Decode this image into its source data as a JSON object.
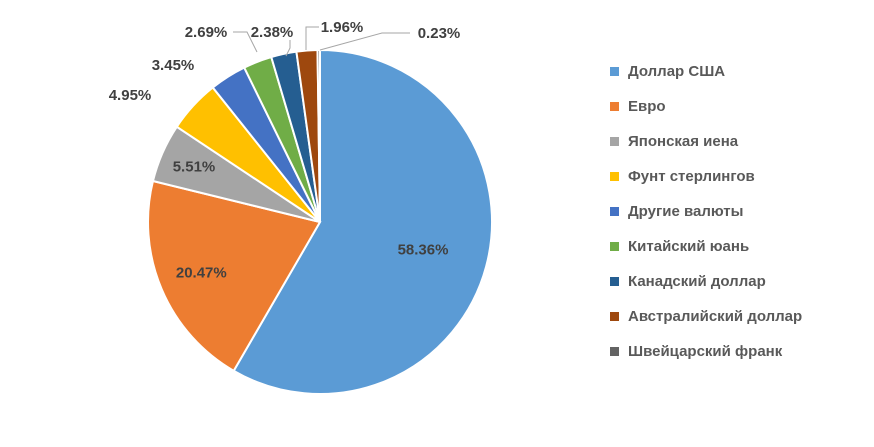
{
  "chart_data": {
    "type": "pie",
    "title": "",
    "legend_position": "right",
    "start_angle_deg": 0,
    "direction": "clockwise",
    "slices": [
      {
        "name": "Доллар США",
        "value": 58.36,
        "label": "58.36%",
        "color": "#5B9BD5",
        "label_style": "inside"
      },
      {
        "name": "Евро",
        "value": 20.47,
        "label": "20.47%",
        "color": "#ED7D31",
        "label_style": "inside"
      },
      {
        "name": "Японская иена",
        "value": 5.51,
        "label": "5.51%",
        "color": "#A5A5A5",
        "label_style": "inside"
      },
      {
        "name": "Фунт стерлингов",
        "value": 4.95,
        "label": "4.95%",
        "color": "#FFC000",
        "label_style": "outside"
      },
      {
        "name": "Другие валюты",
        "value": 3.45,
        "label": "3.45%",
        "color": "#4472C4",
        "label_style": "outside"
      },
      {
        "name": "Китайский юань",
        "value": 2.69,
        "label": "2.69%",
        "color": "#70AD47",
        "label_style": "leader"
      },
      {
        "name": "Канадский доллар",
        "value": 2.38,
        "label": "2.38%",
        "color": "#255E91",
        "label_style": "leader"
      },
      {
        "name": "Австралийский доллар",
        "value": 1.96,
        "label": "1.96%",
        "color": "#9E480E",
        "label_style": "leader"
      },
      {
        "name": "Швейцарский франк",
        "value": 0.23,
        "label": "0.23%",
        "color": "#636363",
        "label_style": "leader"
      }
    ]
  }
}
